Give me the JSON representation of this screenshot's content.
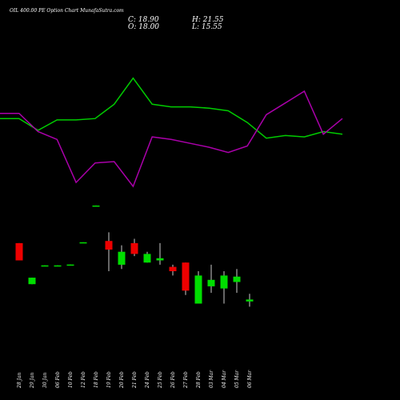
{
  "header": {
    "title": "OIL 400.00 PE Option Chart MunafaSutra.com",
    "close_text": "C: 18.90",
    "open_text": "O: 18.00",
    "high_text": "H: 21.55",
    "low_text": "L: 15.55"
  },
  "colors": {
    "background": "#000000",
    "up": "#00dd00",
    "down": "#ee0000",
    "line_green": "#00cc00",
    "line_magenta": "#aa00aa",
    "text": "#ffffff"
  },
  "chart_data": [
    {
      "type": "line",
      "series": [
        {
          "color": "#00cc00",
          "values": [
            0.52,
            0.52,
            0.43,
            0.51,
            0.51,
            0.52,
            0.63,
            0.83,
            0.63,
            0.61,
            0.61,
            0.6,
            0.58,
            0.49,
            0.37,
            0.39,
            0.38,
            0.42,
            0.4
          ]
        },
        {
          "color": "#aa00aa",
          "values": [
            0.56,
            0.56,
            0.42,
            0.36,
            0.03,
            0.18,
            0.19,
            0.0,
            0.38,
            0.36,
            0.33,
            0.3,
            0.26,
            0.31,
            0.55,
            0.64,
            0.73,
            0.4,
            0.52
          ]
        }
      ]
    },
    {
      "type": "candlestick",
      "categories": [
        "28 Jan",
        "29 Jan",
        "30 Jan",
        "06 Feb",
        "10 Feb",
        "12 Feb",
        "18 Feb",
        "19 Feb",
        "20 Feb",
        "21 Feb",
        "24 Feb",
        "25 Feb",
        "26 Feb",
        "27 Feb",
        "28 Feb",
        "03 Mar",
        "04 Mar",
        "05 Mar",
        "06 Mar"
      ],
      "y_range": [
        12,
        62
      ],
      "candles": [
        {
          "open": 45.0,
          "close": 37.0,
          "high": 45.0,
          "low": 37.0
        },
        {
          "open": 26.0,
          "close": 29.0,
          "high": 29.0,
          "low": 26.0
        },
        {
          "open": 34.3,
          "close": 34.7,
          "high": 34.7,
          "low": 34.3
        },
        {
          "open": 34.3,
          "close": 34.7,
          "high": 34.7,
          "low": 34.3
        },
        {
          "open": 34.6,
          "close": 35.1,
          "high": 35.1,
          "low": 34.6
        },
        {
          "open": 45.0,
          "close": 45.4,
          "high": 45.4,
          "low": 45.0
        },
        {
          "open": 62.0,
          "close": 62.4,
          "high": 62.4,
          "low": 62.0
        },
        {
          "open": 46.0,
          "close": 42.0,
          "high": 50.0,
          "low": 32.0
        },
        {
          "open": 35.0,
          "close": 41.0,
          "high": 44.0,
          "low": 33.0
        },
        {
          "open": 45.0,
          "close": 40.0,
          "high": 47.0,
          "low": 39.0
        },
        {
          "open": 36.0,
          "close": 40.0,
          "high": 41.0,
          "low": 36.0
        },
        {
          "open": 37.0,
          "close": 38.0,
          "high": 45.0,
          "low": 35.0
        },
        {
          "open": 34.0,
          "close": 32.0,
          "high": 35.0,
          "low": 30.0
        },
        {
          "open": 36.0,
          "close": 23.0,
          "high": 36.0,
          "low": 21.0
        },
        {
          "open": 17.0,
          "close": 30.0,
          "high": 32.0,
          "low": 17.0
        },
        {
          "open": 25.0,
          "close": 28.0,
          "high": 35.0,
          "low": 22.0
        },
        {
          "open": 24.0,
          "close": 30.0,
          "high": 32.0,
          "low": 17.0
        },
        {
          "open": 27.0,
          "close": 29.5,
          "high": 33.0,
          "low": 22.0
        },
        {
          "open": 18.0,
          "close": 18.9,
          "high": 21.55,
          "low": 15.55
        }
      ]
    }
  ]
}
